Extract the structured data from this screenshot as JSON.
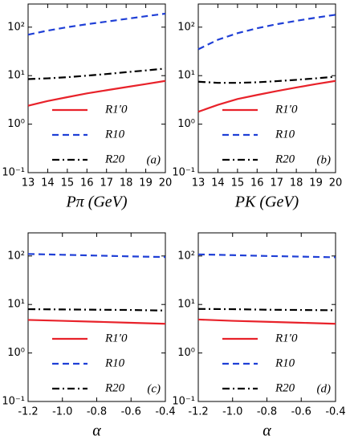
{
  "chart_data": [
    {
      "type": "line",
      "panel_label": "(a)",
      "xlabel": "Pπ (GeV)",
      "log_y": true,
      "x": [
        13,
        14,
        15,
        16,
        17,
        18,
        19,
        20
      ],
      "xlim": [
        13,
        20
      ],
      "xticks": [
        13,
        14,
        15,
        16,
        17,
        18,
        19,
        20
      ],
      "ylim": [
        0.1,
        300
      ],
      "yticks": [
        {
          "value": 0.1,
          "label": "10⁻¹"
        },
        {
          "value": 1,
          "label": "10⁰"
        },
        {
          "value": 10,
          "label": "10¹"
        },
        {
          "value": 100,
          "label": "10²"
        }
      ],
      "series": [
        {
          "name": "R1′0",
          "color": "#e8222a",
          "dash": "solid",
          "values": [
            2.4,
            3.0,
            3.6,
            4.3,
            5.0,
            5.8,
            6.7,
            7.8
          ]
        },
        {
          "name": "R10",
          "color": "#1f3fd6",
          "dash": "dashed",
          "values": [
            70,
            85,
            100,
            115,
            130,
            148,
            168,
            190
          ]
        },
        {
          "name": "R20",
          "color": "#000000",
          "dash": "dashdot",
          "values": [
            8.5,
            8.8,
            9.3,
            10,
            10.8,
            11.8,
            12.8,
            14
          ]
        }
      ]
    },
    {
      "type": "line",
      "panel_label": "(b)",
      "xlabel": "PK (GeV)",
      "log_y": true,
      "x": [
        13,
        14,
        15,
        16,
        17,
        18,
        19,
        20
      ],
      "xlim": [
        13,
        20
      ],
      "xticks": [
        13,
        14,
        15,
        16,
        17,
        18,
        19,
        20
      ],
      "ylim": [
        0.1,
        300
      ],
      "yticks": [
        {
          "value": 0.1,
          "label": "10⁻¹"
        },
        {
          "value": 1,
          "label": "10⁰"
        },
        {
          "value": 10,
          "label": "10¹"
        },
        {
          "value": 100,
          "label": "10²"
        }
      ],
      "series": [
        {
          "name": "R1′0",
          "color": "#e8222a",
          "dash": "solid",
          "values": [
            1.8,
            2.5,
            3.3,
            4.0,
            4.8,
            5.7,
            6.7,
            7.8
          ]
        },
        {
          "name": "R10",
          "color": "#1f3fd6",
          "dash": "dashed",
          "values": [
            35,
            55,
            75,
            95,
            115,
            135,
            157,
            180
          ]
        },
        {
          "name": "R20",
          "color": "#000000",
          "dash": "dashdot",
          "values": [
            7.5,
            7.1,
            7.1,
            7.3,
            7.7,
            8.2,
            8.8,
            9.5
          ]
        }
      ]
    },
    {
      "type": "line",
      "panel_label": "(c)",
      "xlabel": "α",
      "log_y": true,
      "x": [
        -1.2,
        -1.0,
        -0.8,
        -0.6,
        -0.4
      ],
      "xlim": [
        -1.2,
        -0.4
      ],
      "xticks": [
        -1.2,
        {
          "value": -1.0,
          "label": "-1.0"
        },
        -0.8,
        -0.6,
        -0.4
      ],
      "ylim": [
        0.1,
        300
      ],
      "yticks": [
        {
          "value": 0.1,
          "label": "10⁻¹"
        },
        {
          "value": 1,
          "label": "10⁰"
        },
        {
          "value": 10,
          "label": "10¹"
        },
        {
          "value": 100,
          "label": "10²"
        }
      ],
      "series": [
        {
          "name": "R1′0",
          "color": "#e8222a",
          "dash": "solid",
          "values": [
            4.8,
            4.6,
            4.4,
            4.2,
            4.0
          ]
        },
        {
          "name": "R10",
          "color": "#1f3fd6",
          "dash": "dashed",
          "values": [
            110,
            106,
            102,
            98,
            95
          ]
        },
        {
          "name": "R20",
          "color": "#000000",
          "dash": "dashdot",
          "values": [
            8.0,
            7.9,
            7.8,
            7.7,
            7.5
          ]
        }
      ]
    },
    {
      "type": "line",
      "panel_label": "(d)",
      "xlabel": "α",
      "log_y": true,
      "x": [
        -1.2,
        -1.0,
        -0.8,
        -0.6,
        -0.4
      ],
      "xlim": [
        -1.2,
        -0.4
      ],
      "xticks": [
        -1.2,
        {
          "value": -1.0,
          "label": "-1.0"
        },
        -0.8,
        -0.6,
        -0.4
      ],
      "ylim": [
        0.1,
        300
      ],
      "yticks": [
        {
          "value": 0.1,
          "label": "10⁻¹"
        },
        {
          "value": 1,
          "label": "10⁰"
        },
        {
          "value": 10,
          "label": "10¹"
        },
        {
          "value": 100,
          "label": "10²"
        }
      ],
      "series": [
        {
          "name": "R1′0",
          "color": "#e8222a",
          "dash": "solid",
          "values": [
            4.9,
            4.6,
            4.4,
            4.2,
            4.0
          ]
        },
        {
          "name": "R10",
          "color": "#1f3fd6",
          "dash": "dashed",
          "values": [
            108,
            104,
            100,
            97,
            94
          ]
        },
        {
          "name": "R20",
          "color": "#000000",
          "dash": "dashdot",
          "values": [
            8.1,
            8.0,
            7.8,
            7.7,
            7.6
          ]
        }
      ]
    }
  ]
}
